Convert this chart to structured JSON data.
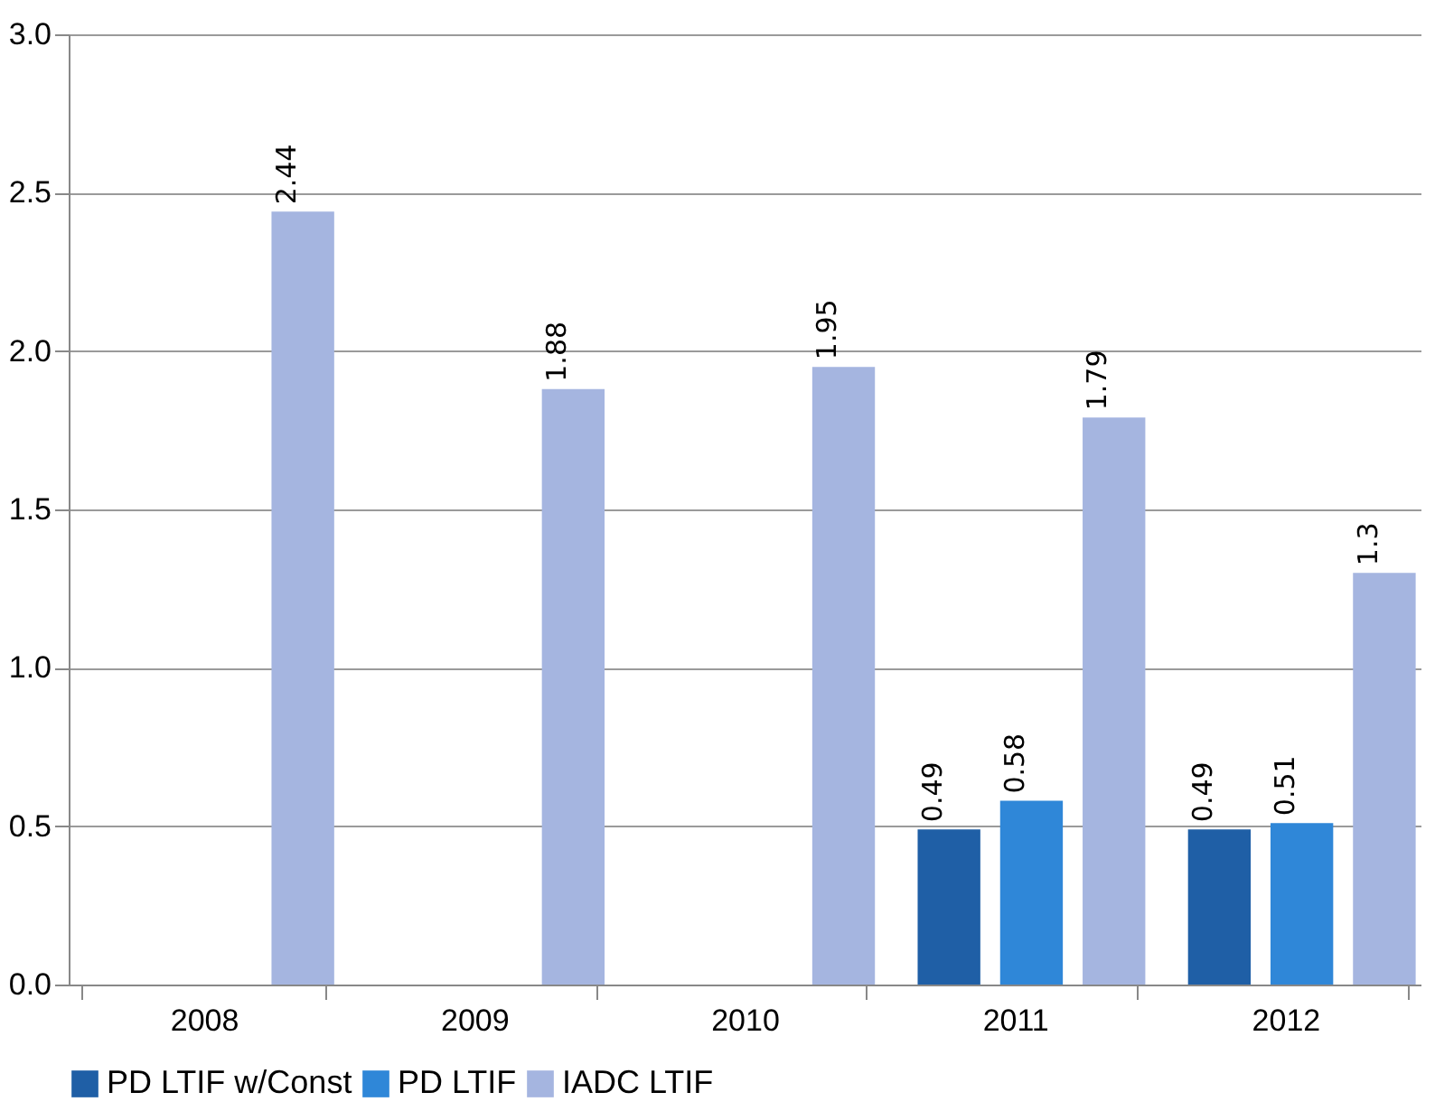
{
  "chart_data": {
    "type": "bar",
    "categories": [
      "2008",
      "2009",
      "2010",
      "2011",
      "2012"
    ],
    "series": [
      {
        "name": "PD LTIF w/Const",
        "color": "#1f5fa6",
        "values": [
          null,
          null,
          null,
          0.49,
          0.49
        ]
      },
      {
        "name": "PD LTIF",
        "color": "#2f87d8",
        "values": [
          null,
          null,
          null,
          0.58,
          0.51
        ]
      },
      {
        "name": "IADC LTIF",
        "color": "#a5b5e0",
        "values": [
          2.44,
          1.88,
          1.95,
          1.79,
          1.3
        ]
      }
    ],
    "ylim": [
      0,
      3
    ],
    "yticks": [
      {
        "value": 0,
        "label": "0.0"
      },
      {
        "value": 0.5,
        "label": "0.5"
      },
      {
        "value": 1,
        "label": "1.0"
      },
      {
        "value": 1.5,
        "label": "1.5"
      },
      {
        "value": 2,
        "label": "2.0"
      },
      {
        "value": 2.5,
        "label": "2.5"
      },
      {
        "value": 3,
        "label": "3.0"
      }
    ],
    "grid": "y",
    "legend": "bottom",
    "data_labels": true
  }
}
